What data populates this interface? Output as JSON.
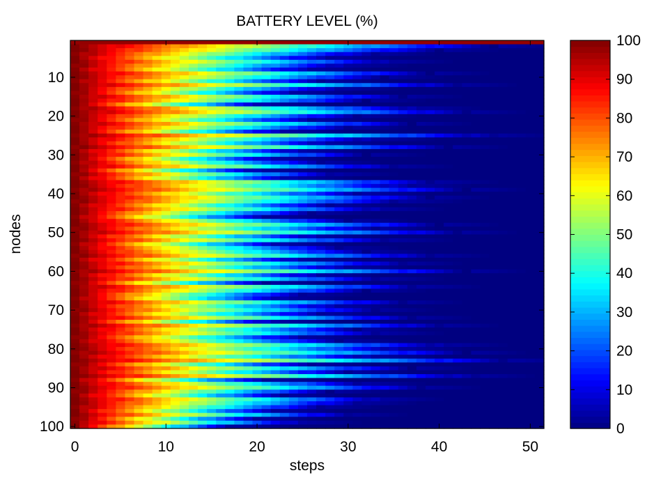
{
  "chart_data": {
    "type": "heatmap",
    "title": "BATTERY LEVEL (%)",
    "xlabel": "steps",
    "ylabel": "nodes",
    "x_range": [
      0,
      51
    ],
    "y_range": [
      1,
      100
    ],
    "xlim": [
      -0.5,
      51.5
    ],
    "ylim": [
      100.5,
      0.5
    ],
    "y_axis_reversed": true,
    "x_ticks": [
      0,
      10,
      20,
      30,
      40,
      50
    ],
    "y_ticks": [
      10,
      20,
      30,
      40,
      50,
      60,
      70,
      80,
      90,
      100
    ],
    "colormap": "jet",
    "colorbar": {
      "range": [
        0,
        100
      ],
      "ticks": [
        0,
        10,
        20,
        30,
        40,
        50,
        60,
        70,
        80,
        90,
        100
      ],
      "levels": 64,
      "placement": "right"
    },
    "grid": false,
    "description_note": "Each row is a node; battery starts near 100% at step 0 and decays to ~0%; depletion step per node varies roughly from 18 to 50 (node 1 stays ~100% throughout).",
    "depletion_step_by_node": [
      51,
      47,
      41,
      34,
      29,
      36,
      31,
      27,
      40,
      35,
      28,
      43,
      30,
      25,
      37,
      33,
      22,
      39,
      44,
      32,
      27,
      38,
      31,
      24,
      47,
      34,
      29,
      42,
      26,
      33,
      23,
      28,
      36,
      21,
      30,
      25,
      41,
      38,
      44,
      33,
      40,
      37,
      29,
      35,
      27,
      22,
      31,
      41,
      34,
      43,
      28,
      36,
      24,
      30,
      33,
      40,
      26,
      37,
      31,
      44,
      28,
      35,
      22,
      39,
      33,
      26,
      24,
      37,
      30,
      34,
      28,
      38,
      23,
      41,
      32,
      35,
      26,
      30,
      42,
      37,
      44,
      34,
      49,
      27,
      38,
      31,
      45,
      22,
      33,
      39,
      29,
      24,
      35,
      32,
      28,
      23,
      31,
      21,
      26,
      18
    ]
  }
}
